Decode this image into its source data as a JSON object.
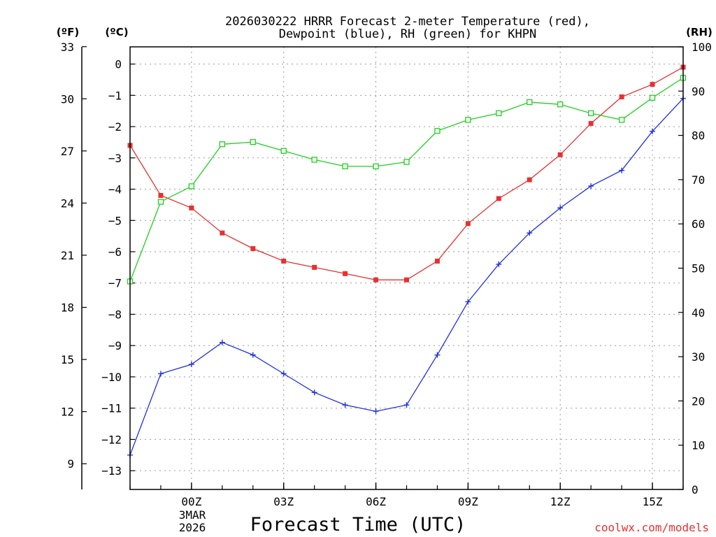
{
  "chart_data": {
    "type": "line",
    "title": "2026030222 HRRR Forecast 2-meter Temperature (red),",
    "subtitle": "Dewpoint (blue), RH (green) for KHPN",
    "xlabel": "Forecast Time (UTC)",
    "left_outer_unit": "(ºF)",
    "left_inner_unit": "(ºC)",
    "right_unit": "(RH)",
    "credit": "coolwx.com/models",
    "x_hours": [
      -2,
      -1,
      0,
      1,
      2,
      3,
      4,
      5,
      6,
      7,
      8,
      9,
      10,
      11,
      12,
      13,
      14,
      15,
      16
    ],
    "xlim": [
      -2,
      16
    ],
    "x_ticks": [
      {
        "hour": 0,
        "label": "00Z"
      },
      {
        "hour": 3,
        "label": "03Z"
      },
      {
        "hour": 6,
        "label": "06Z"
      },
      {
        "hour": 9,
        "label": "09Z"
      },
      {
        "hour": 12,
        "label": "12Z"
      },
      {
        "hour": 15,
        "label": "15Z"
      }
    ],
    "date_line1": "3MAR",
    "date_line2": "2026",
    "celsius_axis": {
      "lim": [
        -13.6,
        0.55
      ],
      "ticks": [
        0,
        -1,
        -2,
        -3,
        -4,
        -5,
        -6,
        -7,
        -8,
        -9,
        -10,
        -11,
        -12,
        -13
      ]
    },
    "fahrenheit_axis": {
      "ticks": [
        33,
        30,
        27,
        24,
        21,
        18,
        15,
        12,
        9
      ]
    },
    "rh_axis": {
      "lim": [
        0,
        100
      ],
      "ticks": [
        0,
        10,
        20,
        30,
        40,
        50,
        60,
        70,
        80,
        90,
        100
      ]
    },
    "series": [
      {
        "name": "Temperature",
        "axis": "C",
        "color": "#e83030",
        "marker": "filled-square",
        "values": [
          -2.6,
          -4.2,
          -4.6,
          -5.4,
          -5.9,
          -6.3,
          -6.5,
          -6.7,
          -6.9,
          -6.9,
          -6.3,
          -5.1,
          -4.3,
          -3.7,
          -2.9,
          -1.9,
          -1.05,
          -0.65,
          -0.1
        ]
      },
      {
        "name": "Dewpoint",
        "axis": "C",
        "color": "#2030e0",
        "marker": "plus",
        "values": [
          -12.5,
          -9.9,
          -9.6,
          -8.9,
          -9.3,
          -9.9,
          -10.5,
          -10.9,
          -11.1,
          -10.9,
          -9.3,
          -7.6,
          -6.4,
          -5.4,
          -4.6,
          -3.9,
          -3.4,
          -2.15,
          -1.1
        ]
      },
      {
        "name": "RH",
        "axis": "RH",
        "color": "#20d020",
        "marker": "open-square",
        "values": [
          47,
          65,
          68.5,
          78,
          78.5,
          76.5,
          74.5,
          73,
          73,
          74,
          81,
          83.5,
          85,
          87.5,
          87,
          85,
          83.5,
          88.5,
          93
        ]
      }
    ]
  }
}
